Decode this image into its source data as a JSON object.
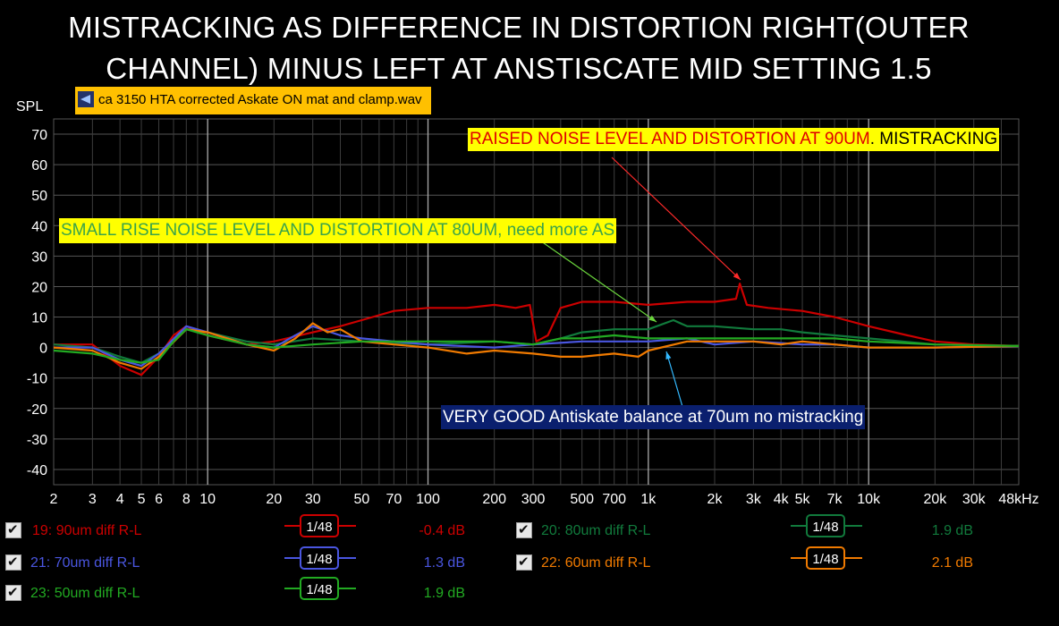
{
  "title": {
    "line1": "MISTRACKING AS DIFFERENCE IN DISTORTION RIGHT(OUTER",
    "line2": "CHANNEL) MINUS LEFT AT ANSTISCATE MID SETTING 1.5"
  },
  "file": {
    "name": "ca 3150 HTA corrected Askate ON  mat and clamp.wav",
    "icon": "audio-file-icon"
  },
  "annotations": {
    "raised_red": "RAISED NOISE LEVEL AND DISTORTION AT 90UM",
    "raised_black": ". MISTRACKING",
    "small_rise": "SMALL RISE  NOISE LEVEL AND DISTORTION AT 80UM, need more AS",
    "very_good": "VERY GOOD Antiskate balance at 70um no mistracking"
  },
  "legend": [
    {
      "name": "19: 90um diff R-L",
      "smoothing": "1/48",
      "value": "-0.4 dB",
      "color": "#cc0000"
    },
    {
      "name": "20: 80um diff R-L",
      "smoothing": "1/48",
      "value": "1.9 dB",
      "color": "#117a3c"
    },
    {
      "name": "21: 70um diff R-L",
      "smoothing": "1/48",
      "value": "1.3 dB",
      "color": "#4a56e0"
    },
    {
      "name": "22: 60um diff R-L",
      "smoothing": "1/48",
      "value": "2.1 dB",
      "color": "#f07a00"
    },
    {
      "name": "23: 50um diff R-L",
      "smoothing": "1/48",
      "value": "1.9 dB",
      "color": "#22aa22"
    }
  ],
  "chart_data": {
    "type": "line",
    "ylabel": "SPL",
    "xunit": "Hz",
    "xscale": "log",
    "xlim": [
      2,
      48000
    ],
    "ylim": [
      -45,
      75
    ],
    "y_ticks": [
      70,
      60,
      50,
      40,
      30,
      20,
      10,
      0,
      -10,
      -20,
      -30,
      -40
    ],
    "x_ticks": [
      {
        "label": "2",
        "value": 2
      },
      {
        "label": "3",
        "value": 3
      },
      {
        "label": "4",
        "value": 4
      },
      {
        "label": "5",
        "value": 5
      },
      {
        "label": "6",
        "value": 6
      },
      {
        "label": "8",
        "value": 8
      },
      {
        "label": "10",
        "value": 10
      },
      {
        "label": "20",
        "value": 20
      },
      {
        "label": "30",
        "value": 30
      },
      {
        "label": "50",
        "value": 50
      },
      {
        "label": "70",
        "value": 70
      },
      {
        "label": "100",
        "value": 100
      },
      {
        "label": "200",
        "value": 200
      },
      {
        "label": "300",
        "value": 300
      },
      {
        "label": "500",
        "value": 500
      },
      {
        "label": "700",
        "value": 700
      },
      {
        "label": "1k",
        "value": 1000
      },
      {
        "label": "2k",
        "value": 2000
      },
      {
        "label": "3k",
        "value": 3000
      },
      {
        "label": "4k",
        "value": 4000
      },
      {
        "label": "5k",
        "value": 5000
      },
      {
        "label": "7k",
        "value": 7000
      },
      {
        "label": "10k",
        "value": 10000
      },
      {
        "label": "20k",
        "value": 20000
      },
      {
        "label": "30k",
        "value": 30000
      },
      {
        "label": "48kHz",
        "value": 48000
      }
    ],
    "grid": true,
    "series": [
      {
        "name": "19: 90um diff R-L",
        "color": "#cc0000",
        "points": [
          [
            2,
            1
          ],
          [
            3,
            1
          ],
          [
            4,
            -6
          ],
          [
            5,
            -9
          ],
          [
            6,
            -3
          ],
          [
            7,
            4
          ],
          [
            8,
            7
          ],
          [
            10,
            4
          ],
          [
            15,
            1
          ],
          [
            20,
            2
          ],
          [
            30,
            5
          ],
          [
            40,
            7
          ],
          [
            50,
            9
          ],
          [
            70,
            12
          ],
          [
            100,
            13
          ],
          [
            150,
            13
          ],
          [
            200,
            14
          ],
          [
            250,
            13
          ],
          [
            290,
            14
          ],
          [
            310,
            2
          ],
          [
            350,
            4
          ],
          [
            400,
            13
          ],
          [
            500,
            15
          ],
          [
            700,
            15
          ],
          [
            1000,
            14
          ],
          [
            1500,
            15
          ],
          [
            2000,
            15
          ],
          [
            2500,
            16
          ],
          [
            2600,
            21
          ],
          [
            2800,
            14
          ],
          [
            3500,
            13
          ],
          [
            5000,
            12
          ],
          [
            7000,
            10
          ],
          [
            10000,
            7
          ],
          [
            15000,
            4
          ],
          [
            20000,
            2
          ],
          [
            30000,
            1
          ],
          [
            48000,
            0.5
          ]
        ]
      },
      {
        "name": "20: 80um diff R-L",
        "color": "#117a3c",
        "points": [
          [
            2,
            1
          ],
          [
            3,
            0
          ],
          [
            4,
            -3
          ],
          [
            5,
            -5
          ],
          [
            6,
            -2
          ],
          [
            8,
            6
          ],
          [
            10,
            5
          ],
          [
            15,
            2
          ],
          [
            20,
            1
          ],
          [
            30,
            3
          ],
          [
            50,
            2
          ],
          [
            100,
            1
          ],
          [
            200,
            2
          ],
          [
            300,
            1
          ],
          [
            400,
            3
          ],
          [
            500,
            5
          ],
          [
            700,
            6
          ],
          [
            1000,
            6
          ],
          [
            1300,
            9
          ],
          [
            1500,
            7
          ],
          [
            2000,
            7
          ],
          [
            3000,
            6
          ],
          [
            4000,
            6
          ],
          [
            5000,
            5
          ],
          [
            7000,
            4
          ],
          [
            10000,
            3
          ],
          [
            20000,
            1
          ],
          [
            48000,
            0.5
          ]
        ]
      },
      {
        "name": "21: 70um diff R-L",
        "color": "#4a56e0",
        "points": [
          [
            2,
            0
          ],
          [
            3,
            0
          ],
          [
            4,
            -4
          ],
          [
            5,
            -6
          ],
          [
            6,
            -2
          ],
          [
            8,
            7
          ],
          [
            10,
            5
          ],
          [
            15,
            1
          ],
          [
            20,
            0
          ],
          [
            25,
            4
          ],
          [
            30,
            7
          ],
          [
            40,
            4
          ],
          [
            50,
            3
          ],
          [
            70,
            2
          ],
          [
            100,
            1
          ],
          [
            200,
            0
          ],
          [
            300,
            1
          ],
          [
            500,
            2
          ],
          [
            700,
            2
          ],
          [
            1000,
            2
          ],
          [
            1500,
            3
          ],
          [
            2000,
            1
          ],
          [
            3000,
            2
          ],
          [
            5000,
            1
          ],
          [
            7000,
            1
          ],
          [
            10000,
            0
          ],
          [
            20000,
            0
          ],
          [
            48000,
            0.5
          ]
        ]
      },
      {
        "name": "22: 60um diff R-L",
        "color": "#f07a00",
        "points": [
          [
            2,
            0
          ],
          [
            3,
            -1
          ],
          [
            4,
            -5
          ],
          [
            5,
            -7
          ],
          [
            6,
            -3
          ],
          [
            8,
            6
          ],
          [
            10,
            5
          ],
          [
            15,
            1
          ],
          [
            20,
            -1
          ],
          [
            25,
            3
          ],
          [
            30,
            8
          ],
          [
            35,
            5
          ],
          [
            40,
            6
          ],
          [
            50,
            2
          ],
          [
            70,
            1
          ],
          [
            100,
            0
          ],
          [
            150,
            -2
          ],
          [
            200,
            -1
          ],
          [
            300,
            -2
          ],
          [
            400,
            -3
          ],
          [
            500,
            -3
          ],
          [
            700,
            -2
          ],
          [
            900,
            -3
          ],
          [
            1000,
            -1
          ],
          [
            1500,
            2
          ],
          [
            2000,
            2
          ],
          [
            3000,
            2
          ],
          [
            4000,
            1
          ],
          [
            5000,
            2
          ],
          [
            7000,
            1
          ],
          [
            10000,
            0
          ],
          [
            20000,
            0
          ],
          [
            48000,
            0.5
          ]
        ]
      },
      {
        "name": "23: 50um diff R-L",
        "color": "#22aa22",
        "points": [
          [
            2,
            -1
          ],
          [
            3,
            -2
          ],
          [
            4,
            -4
          ],
          [
            5,
            -5
          ],
          [
            6,
            -4
          ],
          [
            7,
            2
          ],
          [
            8,
            6
          ],
          [
            10,
            4
          ],
          [
            15,
            1
          ],
          [
            20,
            0
          ],
          [
            30,
            1
          ],
          [
            50,
            2
          ],
          [
            100,
            2
          ],
          [
            200,
            2
          ],
          [
            300,
            1
          ],
          [
            400,
            3
          ],
          [
            500,
            3
          ],
          [
            700,
            4
          ],
          [
            1000,
            3
          ],
          [
            1500,
            3
          ],
          [
            2000,
            3
          ],
          [
            3000,
            3
          ],
          [
            5000,
            3
          ],
          [
            7000,
            3
          ],
          [
            10000,
            2
          ],
          [
            20000,
            1
          ],
          [
            48000,
            0.5
          ]
        ]
      }
    ]
  }
}
